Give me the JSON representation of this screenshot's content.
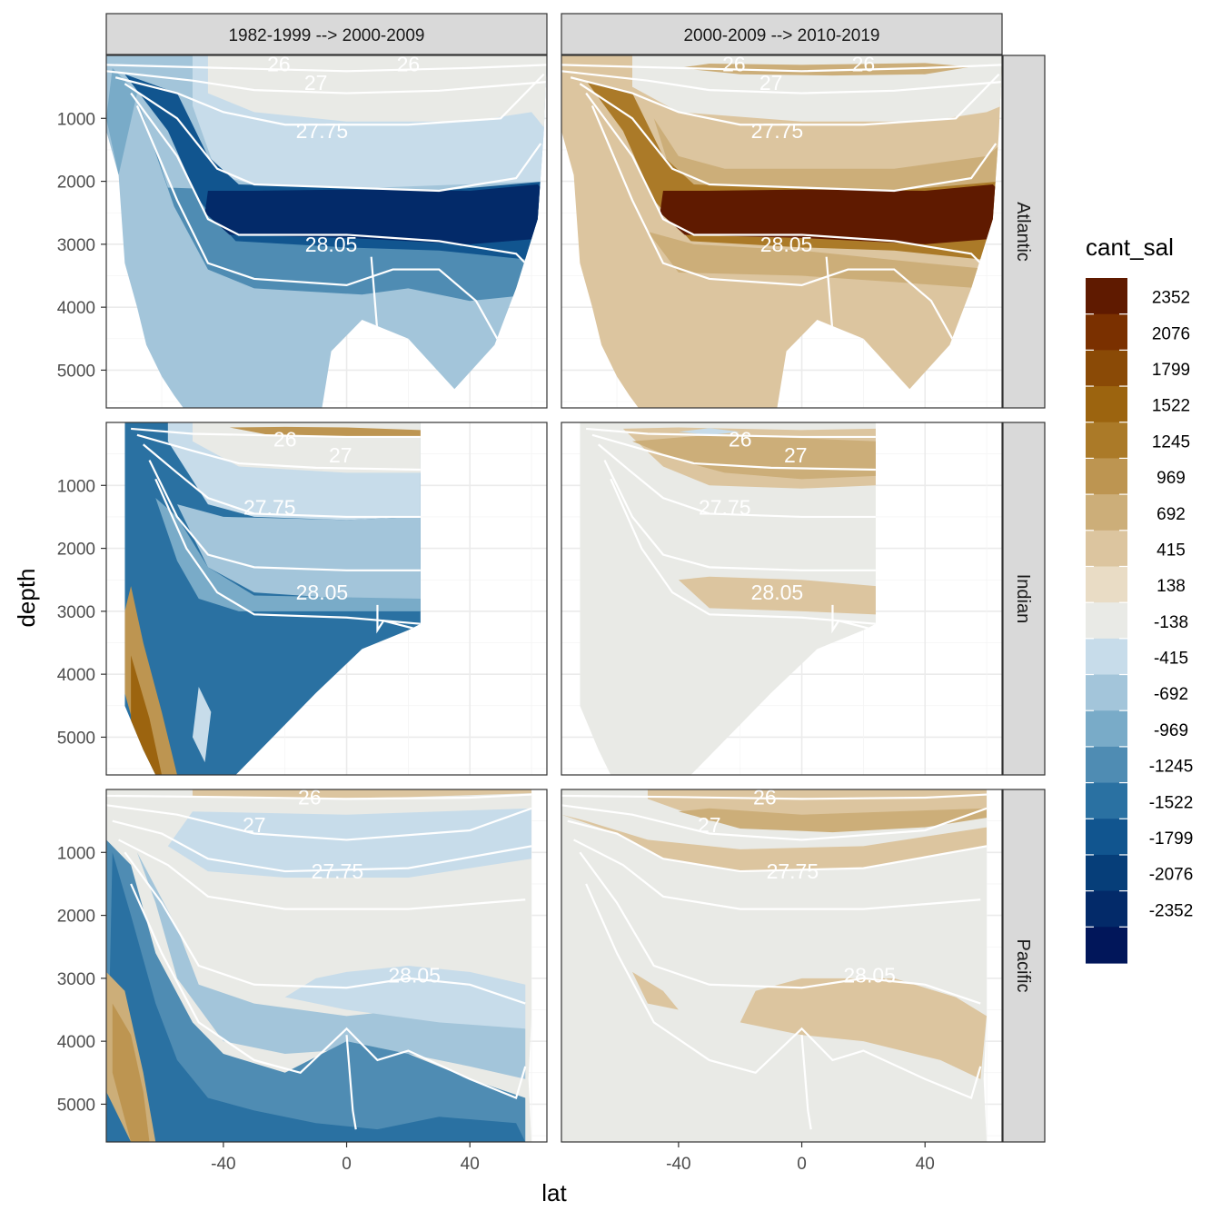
{
  "chart_data": {
    "type": "heatmap",
    "title": "",
    "xlabel": "lat",
    "ylabel": "depth",
    "x_ticks": [
      -40,
      0,
      40
    ],
    "y_ticks": [
      1000,
      2000,
      3000,
      4000,
      5000
    ],
    "xlim": [
      -78,
      65
    ],
    "ylim": [
      5600,
      0
    ],
    "y_reversed": true,
    "grid": true,
    "facet_columns": [
      "1982-1999 --> 2000-2009",
      "2000-2009 --> 2010-2019"
    ],
    "facet_rows": [
      "Atlantic",
      "Indian",
      "Pacific"
    ],
    "legend": {
      "title": "cant_sal",
      "placement": "right",
      "labels": [
        "2352",
        "2076",
        "1799",
        "1522",
        "1245",
        "969",
        "692",
        "415",
        "138",
        "-138",
        "-415",
        "-692",
        "-969",
        "-1245",
        "-1522",
        "-1799",
        "-2076",
        "-2352"
      ],
      "colors": [
        "#5f1a00",
        "#7a3000",
        "#8a4a06",
        "#9c640f",
        "#ab7a28",
        "#bd9551",
        "#ccae79",
        "#dcc59f",
        "#e9dcc5",
        "#e9eae6",
        "#c7dcea",
        "#a3c5da",
        "#79abc8",
        "#4f8cb3",
        "#2a71a2",
        "#11558f",
        "#063e79",
        "#032a69",
        "#01165a"
      ]
    },
    "contour_labels": [
      "26",
      "27",
      "27.75",
      "28.05"
    ],
    "contour_color": "#ffffff",
    "series": [
      {
        "name": "Atlantic",
        "column": "1982-1999 --> 2000-2009",
        "pattern": "negative-dominant",
        "deep_core_value": -2352,
        "bottom_value": -692
      },
      {
        "name": "Atlantic",
        "column": "2000-2009 --> 2010-2019",
        "pattern": "positive-dominant",
        "deep_core_value": 2352,
        "bottom_value": 415
      },
      {
        "name": "Indian",
        "column": "1982-1999 --> 2000-2009",
        "pattern": "negative-deep-positive-southern",
        "deep_core_value": -1522,
        "southern_bottom_value": 1522
      },
      {
        "name": "Indian",
        "column": "2000-2009 --> 2010-2019",
        "pattern": "near-zero",
        "upper_value": 415,
        "bottom_value": -138
      },
      {
        "name": "Pacific",
        "column": "1982-1999 --> 2000-2009",
        "pattern": "negative-deep",
        "deep_core_value": -1522,
        "southern_bottom_value": 969
      },
      {
        "name": "Pacific",
        "column": "2000-2009 --> 2010-2019",
        "pattern": "near-zero-positive-upper",
        "upper_value": 415,
        "bottom_value": -138
      }
    ]
  }
}
